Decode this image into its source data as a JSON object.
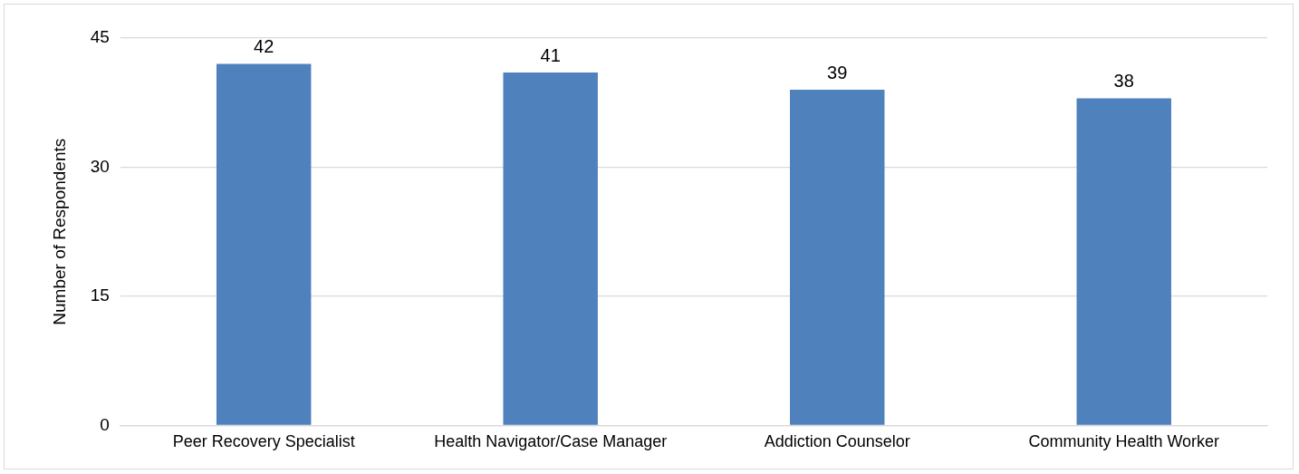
{
  "chart_data": {
    "type": "bar",
    "ylabel": "Number of Respondents",
    "categories": [
      "Peer Recovery Specialist",
      "Health Navigator/Case Manager",
      "Addiction Counselor",
      "Community Health Worker"
    ],
    "values": [
      42,
      41,
      39,
      38
    ],
    "color": "#4f81bd",
    "ylim": [
      0,
      45
    ],
    "yticks": [
      0,
      15,
      30,
      45
    ],
    "grid": "y",
    "data_labels": true,
    "legend": false
  }
}
